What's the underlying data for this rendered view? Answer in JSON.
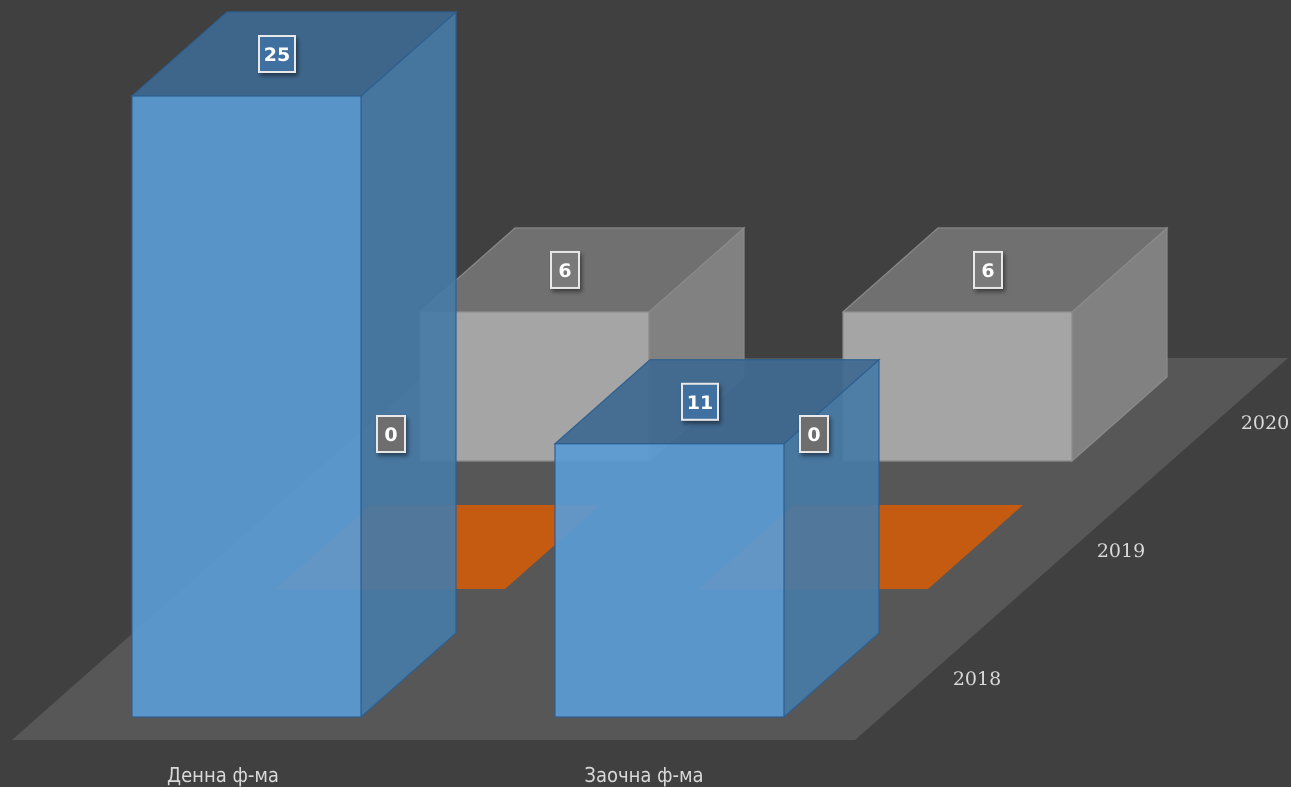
{
  "chart_data": {
    "type": "bar",
    "style": "3d-column",
    "categories": [
      "Денна ф-ма",
      "Заочна ф-ма"
    ],
    "series": [
      {
        "name": "2018",
        "values": [
          25,
          11
        ],
        "color": "#5b9bd5"
      },
      {
        "name": "2019",
        "values": [
          0,
          0
        ],
        "color": "#c55a11"
      },
      {
        "name": "2020",
        "values": [
          6,
          6
        ],
        "color": "#a5a5a5"
      }
    ],
    "data_labels": true,
    "title": "",
    "xlabel": "",
    "ylabel": "",
    "ylim": [
      0,
      25
    ],
    "grid": false,
    "legend": "none"
  }
}
